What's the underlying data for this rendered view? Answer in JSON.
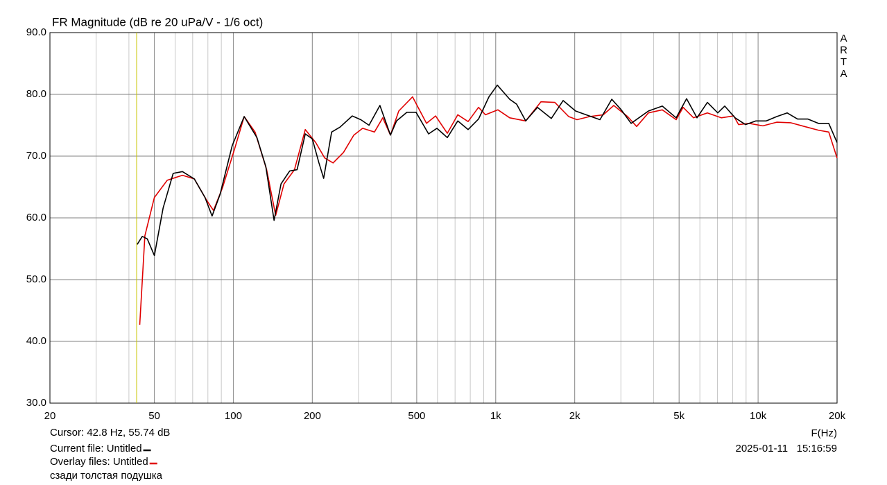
{
  "chart_data": {
    "type": "line",
    "title": "FR Magnitude (dB re 20 uPa/V - 1/6 oct)",
    "x_label": "F(Hz)",
    "watermark": "ARTA",
    "x_scale": "log",
    "xlim": [
      20,
      20000
    ],
    "ylim": [
      30,
      90
    ],
    "xticks": [
      20,
      50,
      100,
      200,
      500,
      {
        "value": 1000,
        "label": "1k"
      },
      {
        "value": 2000,
        "label": "2k"
      },
      {
        "value": 5000,
        "label": "5k"
      },
      {
        "value": 10000,
        "label": "10k"
      },
      {
        "value": 20000,
        "label": "20k"
      }
    ],
    "yticks": [
      {
        "value": 30,
        "label": "30.0"
      },
      {
        "value": 40,
        "label": "40.0"
      },
      {
        "value": 50,
        "label": "50.0"
      },
      {
        "value": 60,
        "label": "60.0"
      },
      {
        "value": 70,
        "label": "70.0"
      },
      {
        "value": 80,
        "label": "80.0"
      },
      {
        "value": 90,
        "label": "90.0"
      }
    ],
    "grid": true,
    "cursor": {
      "x": 42.8,
      "color": "#c8c400",
      "label": "Cursor: 42.8 Hz, 55.74 dB"
    },
    "timestamp": "2025-01-11   15:16:59",
    "note": "сзади толстая подушка",
    "series": [
      {
        "name": "Current file: Untitled",
        "color": "#000000",
        "x": [
          43,
          45,
          47,
          50,
          54,
          59,
          64,
          71,
          78,
          83,
          89,
          99,
          110,
          123,
          133,
          143,
          152,
          164,
          175,
          188,
          200,
          212,
          221,
          237,
          255,
          284,
          306,
          329,
          362,
          397,
          419,
          459,
          497,
          555,
          597,
          654,
          717,
          785,
          860,
          942,
          1014,
          1131,
          1202,
          1301,
          1443,
          1629,
          1807,
          2016,
          2209,
          2496,
          2768,
          2996,
          3282,
          3820,
          4316,
          4874,
          5340,
          5850,
          6408,
          7022,
          7462,
          8174,
          8956,
          9814,
          10752,
          11780,
          12904,
          14140,
          15490,
          16974,
          18592,
          20000
        ],
        "values": [
          55.7,
          57.0,
          56.6,
          53.9,
          61.6,
          67.2,
          67.5,
          66.3,
          63.3,
          60.3,
          63.8,
          71.7,
          76.4,
          73.0,
          68.3,
          59.6,
          65.5,
          67.6,
          67.8,
          73.6,
          72.8,
          68.9,
          66.4,
          73.9,
          74.7,
          76.5,
          75.9,
          75.0,
          78.2,
          73.4,
          75.7,
          77.1,
          77.1,
          73.6,
          74.5,
          73.0,
          75.7,
          74.3,
          76.0,
          79.6,
          81.5,
          79.2,
          78.4,
          75.7,
          77.9,
          76.1,
          79.0,
          77.3,
          76.7,
          75.9,
          79.2,
          77.6,
          75.3,
          77.3,
          78.1,
          76.2,
          79.3,
          76.2,
          78.7,
          77.0,
          78.1,
          76.2,
          75.1,
          75.7,
          75.7,
          76.4,
          77.0,
          76.0,
          76.0,
          75.3,
          75.3,
          72.2
        ]
      },
      {
        "name": "Overlay files: Untitled",
        "color": "#e00000",
        "x": [
          44,
          46,
          50,
          56,
          64,
          71,
          79,
          84,
          91,
          101,
          110,
          121,
          134,
          145,
          156,
          171,
          188,
          206,
          223,
          240,
          263,
          288,
          311,
          345,
          371,
          397,
          427,
          482,
          545,
          590,
          654,
          717,
          785,
          860,
          914,
          1020,
          1131,
          1301,
          1487,
          1680,
          1897,
          2041,
          2278,
          2572,
          2818,
          3182,
          3444,
          3820,
          4316,
          4874,
          5180,
          5676,
          6408,
          7238,
          8076,
          8428,
          9236,
          10428,
          11780,
          13302,
          15026,
          16974,
          18592,
          20000
        ],
        "values": [
          42.7,
          57.1,
          63.3,
          66.1,
          66.9,
          66.3,
          62.9,
          61.2,
          64.9,
          71.1,
          76.4,
          73.9,
          67.8,
          60.4,
          65.5,
          67.8,
          74.3,
          72.2,
          69.7,
          68.9,
          70.6,
          73.4,
          74.5,
          73.9,
          76.2,
          73.4,
          77.3,
          79.6,
          75.3,
          76.5,
          73.7,
          76.7,
          75.6,
          77.9,
          76.7,
          77.5,
          76.2,
          75.7,
          78.8,
          78.7,
          76.4,
          75.9,
          76.4,
          76.7,
          78.2,
          76.4,
          74.8,
          77.0,
          77.5,
          75.9,
          77.9,
          76.2,
          77.0,
          76.2,
          76.5,
          75.1,
          75.3,
          74.9,
          75.5,
          75.4,
          74.8,
          74.2,
          73.9,
          69.7
        ]
      }
    ]
  }
}
